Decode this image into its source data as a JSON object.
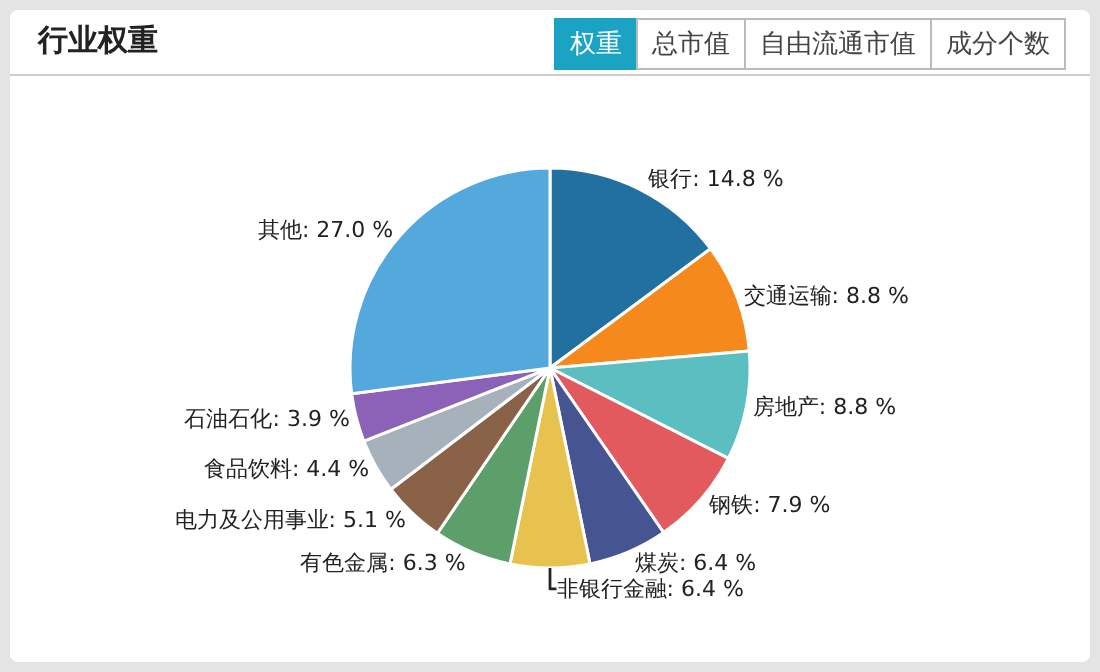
{
  "chart_data": {
    "type": "pie",
    "title": "行业权重",
    "annotations": [
      "权重",
      "总市值",
      "自由流通市值",
      "成分个数"
    ],
    "categories": [
      "银行",
      "交通运输",
      "房地产",
      "钢铁",
      "煤炭",
      "非银行金融",
      "有色金属",
      "电力及公用事业",
      "食品饮料",
      "石油石化",
      "其他"
    ],
    "values": [
      14.8,
      8.8,
      8.8,
      7.9,
      6.4,
      6.4,
      6.3,
      5.1,
      4.4,
      3.9,
      27.0
    ],
    "value_labels": [
      "14.8 %",
      "8.8 %",
      "8.8 %",
      "7.9 %",
      "6.4 %",
      "6.4 %",
      "6.3 %",
      "5.1 %",
      "4.4 %",
      "3.9 %",
      "27.0 %"
    ],
    "colors": [
      "#21709f",
      "#f5891c",
      "#5bbfc2",
      "#e35a5e",
      "#465492",
      "#e8c24e",
      "#5c9f6a",
      "#8a6248",
      "#a7b1bc",
      "#8b62b8",
      "#53a8dc"
    ],
    "legend": false
  }
}
